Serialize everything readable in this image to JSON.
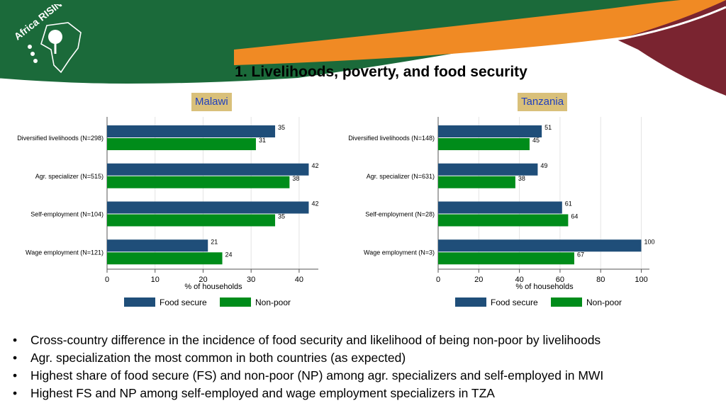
{
  "header": {
    "title": "1. Livelihoods, poverty, and food security",
    "logo_text": "Africa RISING"
  },
  "colors": {
    "banner_green": "#1b6a3a",
    "banner_orange": "#f08a24",
    "banner_maroon": "#7a2430",
    "label_bg": "#d9c07a",
    "label_text": "#1f3fbf",
    "food_secure": "#1f4e79",
    "non_poor": "#008c1a"
  },
  "chart_data": [
    {
      "type": "bar",
      "orientation": "horizontal",
      "title": "Malawi",
      "categories": [
        "Diversified livelihoods (N=298)",
        "Agr. specializer (N=515)",
        "Self-employment (N=104)",
        "Wage employment (N=121)"
      ],
      "series": [
        {
          "name": "Food secure",
          "values": [
            35,
            42,
            42,
            21
          ]
        },
        {
          "name": "Non-poor",
          "values": [
            31,
            38,
            35,
            24
          ]
        }
      ],
      "xlabel": "% of households",
      "xlim": [
        0,
        44
      ],
      "xticks": [
        0,
        10,
        20,
        30,
        40
      ],
      "grid": true,
      "legend": "bottom"
    },
    {
      "type": "bar",
      "orientation": "horizontal",
      "title": "Tanzania",
      "categories": [
        "Diversified livelihoods (N=148)",
        "Agr. specializer (N=631)",
        "Self-employment (N=28)",
        "Wage employment (N=3)"
      ],
      "series": [
        {
          "name": "Food secure",
          "values": [
            51,
            49,
            61,
            100
          ]
        },
        {
          "name": "Non-poor",
          "values": [
            45,
            38,
            64,
            67
          ]
        }
      ],
      "xlabel": "% of households",
      "xlim": [
        0,
        104
      ],
      "xticks": [
        0,
        20,
        40,
        60,
        80,
        100
      ],
      "grid": true,
      "legend": "bottom"
    }
  ],
  "bullets": [
    "Cross-country difference in the incidence of food security and likelihood of being non-poor by livelihoods",
    "Agr. specialization the most common in both countries (as expected)",
    "Highest share of food secure (FS) and non-poor (NP) among agr. specializers and self-employed in MWI",
    "Highest FS and NP among self-employed and wage employment specializers in TZA"
  ]
}
